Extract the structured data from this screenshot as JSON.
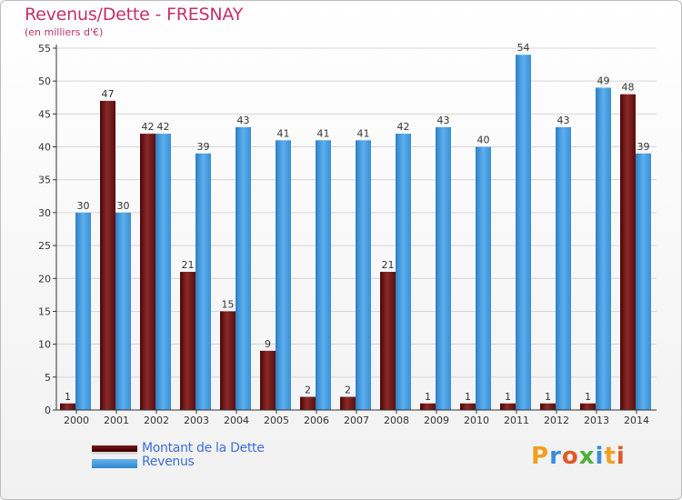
{
  "header": {
    "title": "Revenus/Dette - FRESNAY",
    "subtitle": "(en milliers d'€)"
  },
  "chart_data": {
    "type": "bar",
    "categories": [
      "2000",
      "2001",
      "2002",
      "2003",
      "2004",
      "2005",
      "2006",
      "2007",
      "2008",
      "2009",
      "2010",
      "2011",
      "2012",
      "2013",
      "2014"
    ],
    "series": [
      {
        "name": "Montant de la Dette",
        "color": "#6e1515",
        "values": [
          1,
          47,
          42,
          21,
          15,
          9,
          2,
          2,
          21,
          1,
          1,
          1,
          1,
          1,
          48
        ]
      },
      {
        "name": "Revenus",
        "color": "#4aa3e8",
        "values": [
          30,
          30,
          42,
          39,
          43,
          41,
          41,
          41,
          42,
          43,
          40,
          54,
          43,
          49,
          39
        ]
      }
    ],
    "ylim": [
      0,
      55
    ],
    "yticks": [
      0,
      5,
      10,
      15,
      20,
      25,
      30,
      35,
      40,
      45,
      50,
      55
    ],
    "grid": true,
    "legend_position": "bottom-left"
  },
  "logo": {
    "letters": [
      "P",
      "r",
      "o",
      "x",
      "i",
      "t",
      "i"
    ]
  }
}
